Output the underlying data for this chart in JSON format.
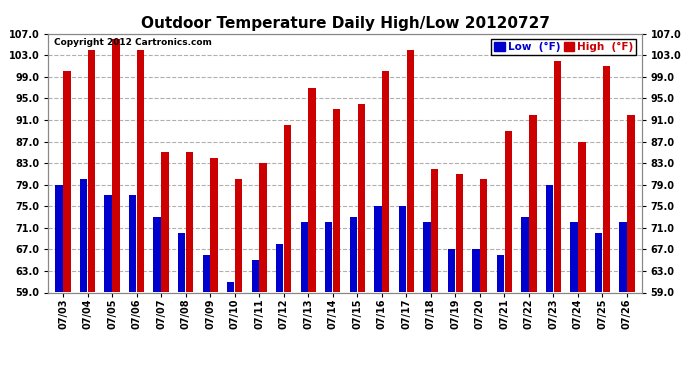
{
  "title": "Outdoor Temperature Daily High/Low 20120727",
  "copyright": "Copyright 2012 Cartronics.com",
  "legend_low": "Low  (°F)",
  "legend_high": "High  (°F)",
  "dates": [
    "07/03",
    "07/04",
    "07/05",
    "07/06",
    "07/07",
    "07/08",
    "07/09",
    "07/10",
    "07/11",
    "07/12",
    "07/13",
    "07/14",
    "07/15",
    "07/16",
    "07/17",
    "07/18",
    "07/19",
    "07/20",
    "07/21",
    "07/22",
    "07/23",
    "07/24",
    "07/25",
    "07/26"
  ],
  "highs": [
    100,
    104,
    106,
    104,
    85,
    85,
    84,
    80,
    83,
    90,
    97,
    93,
    94,
    100,
    104,
    82,
    81,
    80,
    89,
    92,
    102,
    87,
    101,
    92
  ],
  "lows": [
    79,
    80,
    77,
    77,
    73,
    70,
    66,
    61,
    65,
    68,
    72,
    72,
    73,
    75,
    75,
    72,
    67,
    67,
    66,
    73,
    79,
    72,
    70,
    72
  ],
  "bar_color_low": "#0000cc",
  "bar_color_high": "#cc0000",
  "background_color": "#ffffff",
  "plot_bg_color": "#ffffff",
  "grid_color": "#b0b0b0",
  "ymin": 59.0,
  "ymax": 107.0,
  "yticks": [
    59.0,
    63.0,
    67.0,
    71.0,
    75.0,
    79.0,
    83.0,
    87.0,
    91.0,
    95.0,
    99.0,
    103.0,
    107.0
  ],
  "title_fontsize": 11,
  "tick_fontsize": 7,
  "legend_fontsize": 7.5,
  "bar_width": 0.3
}
